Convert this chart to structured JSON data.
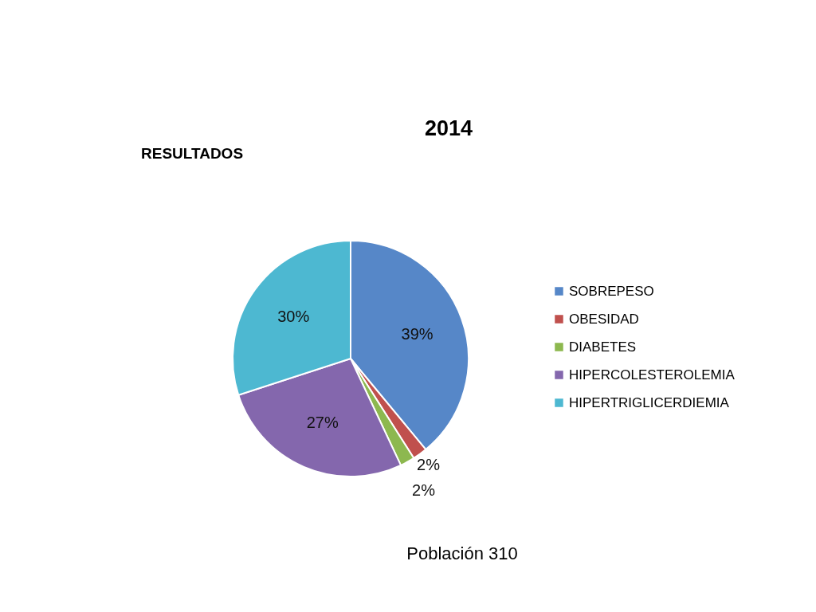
{
  "chart_data": {
    "type": "pie",
    "title": "2014",
    "categories": [
      "SOBREPESO",
      "OBESIDAD",
      "DIABETES",
      "HIPERCOLESTEROLEMIA",
      "HIPERTRIGLICERDIEMIA"
    ],
    "values": [
      39,
      2,
      2,
      27,
      30
    ],
    "colors": [
      "#5687c8",
      "#c0504d",
      "#8db84f",
      "#8467ad",
      "#4db8d1"
    ],
    "value_labels": [
      "39%",
      "2%",
      "2%",
      "27%",
      "30%"
    ],
    "legend": "right",
    "annotations": [
      "RESULTADOS",
      "Población 310"
    ]
  }
}
